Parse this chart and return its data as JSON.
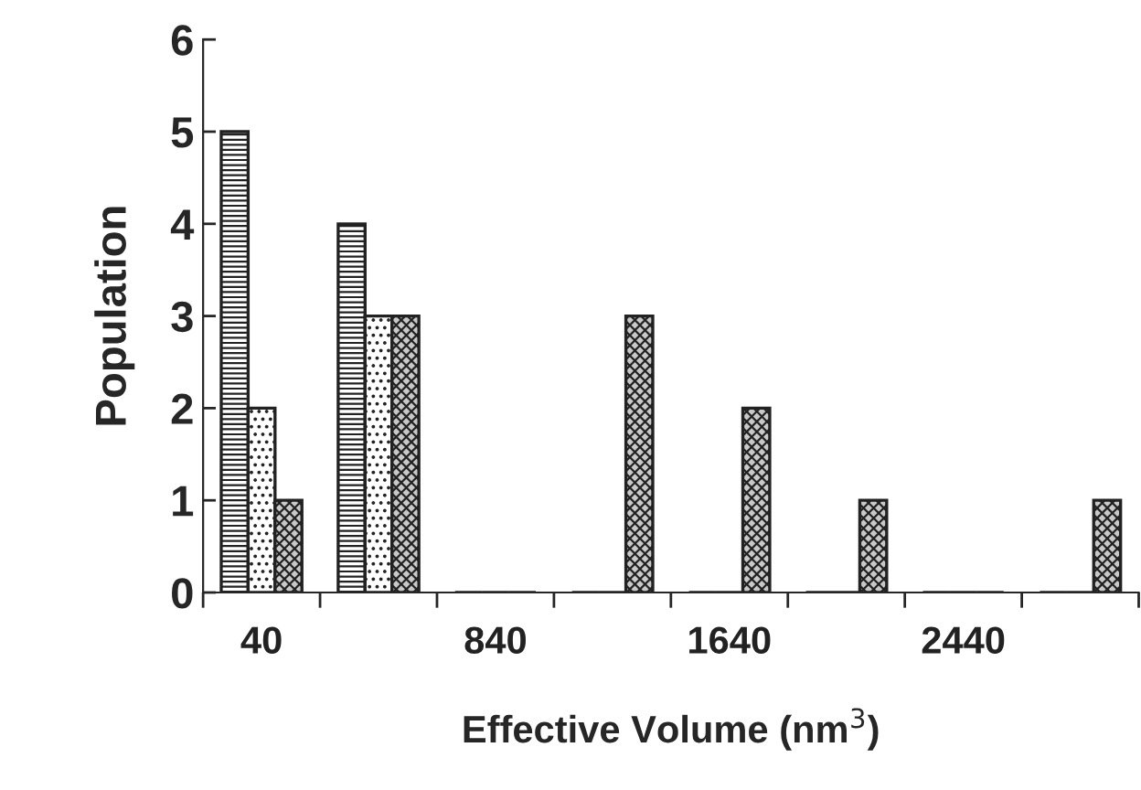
{
  "chart_data": {
    "type": "bar",
    "xlabel": "Effective Volume (nm$^{3}$)",
    "ylabel": "Population",
    "categories": [
      "40",
      null,
      "840",
      null,
      "1640",
      null,
      "2440",
      null
    ],
    "series": [
      {
        "color": "#222222",
        "values": [
          5,
          4,
          0,
          0,
          0,
          0,
          0,
          0
        ]
      },
      {
        "color": "#222222",
        "values": [
          2,
          3,
          0,
          0,
          0,
          0,
          0,
          0
        ]
      },
      {
        "color": "#222222",
        "values": [
          1,
          3,
          0,
          3,
          2,
          1,
          0,
          1
        ]
      }
    ],
    "ylim": [
      0,
      6
    ],
    "yticks": [
      0,
      1,
      2,
      3,
      4,
      5,
      6
    ],
    "grid": false,
    "legend": false
  }
}
